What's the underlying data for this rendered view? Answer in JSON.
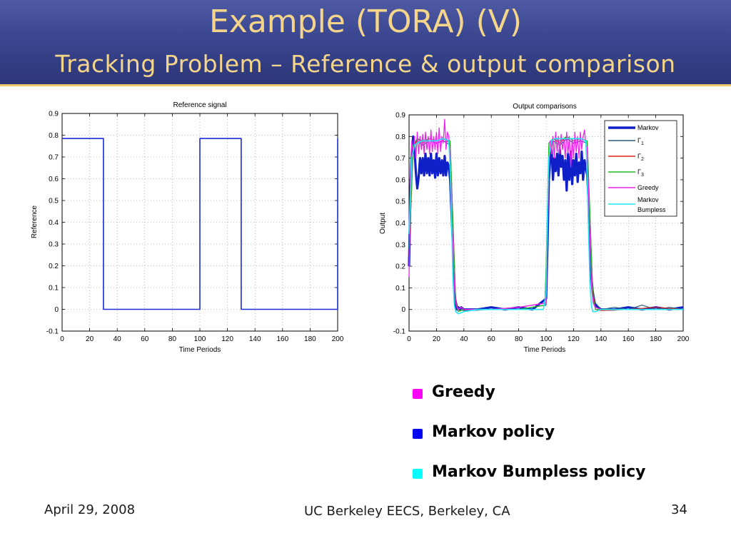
{
  "slide": {
    "title": "Example (TORA) (V)",
    "subtitle": "Tracking Problem – Reference & output comparison"
  },
  "chart_data": [
    {
      "type": "line",
      "title": "Reference signal",
      "xlabel": "Time Periods",
      "ylabel": "Reference",
      "xlim": [
        0,
        200
      ],
      "ylim": [
        -0.1,
        0.9
      ],
      "xticks": [
        0,
        20,
        40,
        60,
        80,
        100,
        120,
        140,
        160,
        180,
        200
      ],
      "yticks": [
        -0.1,
        0,
        0.1,
        0.2,
        0.3,
        0.4,
        0.5,
        0.6,
        0.7,
        0.8,
        0.9
      ],
      "grid": true,
      "series": [
        {
          "color": "#1a2bd6",
          "x": [
            0,
            30,
            30,
            100,
            100,
            130,
            130,
            200,
            200
          ],
          "y": [
            0.785,
            0.785,
            0,
            0,
            0.785,
            0.785,
            0,
            0,
            0.785
          ]
        }
      ]
    },
    {
      "type": "line",
      "title": "Output comparisons",
      "xlabel": "Time Periods",
      "ylabel": "Output",
      "xlim": [
        0,
        200
      ],
      "ylim": [
        -0.1,
        0.9
      ],
      "xticks": [
        0,
        20,
        40,
        60,
        80,
        100,
        120,
        140,
        160,
        180,
        200
      ],
      "yticks": [
        -0.1,
        0,
        0.1,
        0.2,
        0.3,
        0.4,
        0.5,
        0.6,
        0.7,
        0.8,
        0.9
      ],
      "grid": true,
      "legend_position": "top-right",
      "series": [
        {
          "name": "Markov",
          "color": "#1020c8",
          "x": [
            0,
            1,
            2,
            3,
            4,
            5,
            6,
            7,
            8,
            9,
            10,
            11,
            12,
            13,
            14,
            15,
            16,
            17,
            18,
            19,
            20,
            21,
            22,
            23,
            24,
            25,
            26,
            27,
            28,
            29,
            30,
            31,
            32,
            33,
            34,
            35,
            36,
            37,
            38,
            40,
            50,
            60,
            70,
            80,
            90,
            100,
            101,
            102,
            103,
            104,
            105,
            106,
            107,
            108,
            109,
            110,
            111,
            112,
            113,
            114,
            115,
            116,
            117,
            118,
            119,
            120,
            121,
            122,
            123,
            124,
            125,
            126,
            127,
            128,
            129,
            130,
            131,
            132,
            133,
            134,
            135,
            136,
            138,
            140,
            150,
            160,
            170,
            180,
            190,
            200
          ],
          "y": [
            0.2,
            0.55,
            0.72,
            0.8,
            0.74,
            0.63,
            0.56,
            0.61,
            0.7,
            0.63,
            0.7,
            0.62,
            0.72,
            0.63,
            0.7,
            0.62,
            0.72,
            0.63,
            0.69,
            0.61,
            0.72,
            0.62,
            0.7,
            0.63,
            0.69,
            0.62,
            0.71,
            0.62,
            0.68,
            0.66,
            0.6,
            0.45,
            0.3,
            0.1,
            0.02,
            0.0,
            0.01,
            0.0,
            0.01,
            0.0,
            0.0,
            0.01,
            0.0,
            0.01,
            0.0,
            0.05,
            0.3,
            0.6,
            0.7,
            0.74,
            0.6,
            0.7,
            0.64,
            0.72,
            0.62,
            0.74,
            0.66,
            0.71,
            0.6,
            0.69,
            0.55,
            0.72,
            0.6,
            0.73,
            0.58,
            0.69,
            0.62,
            0.72,
            0.59,
            0.68,
            0.63,
            0.73,
            0.6,
            0.69,
            0.65,
            0.62,
            0.5,
            0.35,
            0.15,
            0.08,
            0.03,
            0.02,
            0.01,
            0.0,
            0.0,
            0.01,
            0.0,
            0.01,
            0.0,
            0.01
          ]
        },
        {
          "name": "Γ1",
          "color": "#2d5a7c",
          "x": [
            0,
            3,
            6,
            10,
            15,
            20,
            25,
            30,
            32,
            34,
            36,
            40,
            60,
            80,
            100,
            102,
            105,
            110,
            115,
            120,
            125,
            130,
            132,
            134,
            136,
            140,
            150,
            160,
            170,
            180,
            190,
            200
          ],
          "y": [
            0.3,
            0.75,
            0.78,
            0.76,
            0.78,
            0.77,
            0.78,
            0.76,
            0.4,
            0.05,
            0.0,
            -0.005,
            0.0,
            0.0,
            0.02,
            0.72,
            0.78,
            0.76,
            0.79,
            0.77,
            0.78,
            0.77,
            0.4,
            0.1,
            0.03,
            0.0,
            0.01,
            0.0,
            0.02,
            0.0,
            0.01,
            0.0
          ]
        },
        {
          "name": "Γ2",
          "color": "#e0221c",
          "x": [
            0,
            3,
            6,
            10,
            15,
            20,
            25,
            30,
            32,
            34,
            36,
            40,
            60,
            80,
            100,
            102,
            105,
            110,
            115,
            120,
            125,
            130,
            132,
            134,
            136,
            140,
            160,
            180,
            200
          ],
          "y": [
            0.25,
            0.74,
            0.79,
            0.77,
            0.79,
            0.78,
            0.79,
            0.77,
            0.42,
            0.04,
            -0.01,
            0.0,
            0.0,
            0.01,
            0.03,
            0.7,
            0.79,
            0.77,
            0.8,
            0.78,
            0.79,
            0.78,
            0.42,
            0.08,
            0.0,
            -0.005,
            0.0,
            0.01,
            0.0
          ]
        },
        {
          "name": "Γ3",
          "color": "#22bb22",
          "x": [
            0,
            3,
            6,
            10,
            15,
            20,
            25,
            30,
            32,
            34,
            36,
            40,
            60,
            80,
            99,
            100,
            102,
            105,
            110,
            115,
            120,
            125,
            130,
            132,
            134,
            136,
            140,
            160,
            180,
            200
          ],
          "y": [
            0.28,
            0.76,
            0.79,
            0.78,
            0.79,
            0.78,
            0.79,
            0.78,
            0.4,
            0.03,
            -0.01,
            0.0,
            0.0,
            0.0,
            0.02,
            0.2,
            0.77,
            0.79,
            0.78,
            0.8,
            0.78,
            0.79,
            0.78,
            0.45,
            0.06,
            0.0,
            0.0,
            0.0,
            0.0,
            0.0
          ]
        },
        {
          "name": "Greedy",
          "color": "#ee22ee",
          "x": [
            0,
            1,
            2,
            3,
            4,
            5,
            6,
            7,
            8,
            9,
            10,
            11,
            12,
            13,
            14,
            15,
            16,
            17,
            18,
            19,
            20,
            21,
            22,
            23,
            24,
            25,
            26,
            27,
            28,
            29,
            30,
            31,
            32,
            33,
            34,
            35,
            36,
            38,
            40,
            60,
            80,
            100,
            101,
            102,
            103,
            104,
            105,
            106,
            107,
            108,
            109,
            110,
            111,
            112,
            113,
            114,
            115,
            116,
            117,
            118,
            119,
            120,
            121,
            122,
            123,
            124,
            125,
            126,
            127,
            128,
            129,
            130,
            131,
            132,
            133,
            134,
            135,
            136,
            140,
            160,
            180,
            200
          ],
          "y": [
            0.15,
            0.6,
            0.78,
            0.72,
            0.8,
            0.7,
            0.82,
            0.72,
            0.8,
            0.74,
            0.81,
            0.72,
            0.82,
            0.74,
            0.8,
            0.72,
            0.83,
            0.73,
            0.8,
            0.74,
            0.82,
            0.72,
            0.84,
            0.73,
            0.8,
            0.77,
            0.88,
            0.74,
            0.82,
            0.8,
            0.7,
            0.5,
            0.3,
            0.12,
            0.03,
            0.01,
            0.0,
            0.01,
            0.0,
            0.0,
            0.01,
            0.03,
            0.35,
            0.65,
            0.78,
            0.72,
            0.8,
            0.7,
            0.82,
            0.73,
            0.8,
            0.72,
            0.81,
            0.74,
            0.79,
            0.7,
            0.82,
            0.72,
            0.8,
            0.66,
            0.79,
            0.7,
            0.82,
            0.73,
            0.8,
            0.7,
            0.82,
            0.74,
            0.8,
            0.83,
            0.76,
            0.75,
            0.55,
            0.33,
            0.12,
            0.05,
            0.02,
            0.01,
            0.0,
            0.0,
            0.0,
            0.0
          ]
        },
        {
          "name": "Markov Bumpless",
          "color": "#22e6f2",
          "x": [
            0,
            2,
            4,
            6,
            10,
            15,
            20,
            25,
            29,
            30,
            31,
            32,
            33,
            34,
            36,
            40,
            50,
            60,
            70,
            80,
            90,
            98,
            100,
            101,
            102,
            104,
            106,
            110,
            115,
            120,
            125,
            129,
            130,
            131,
            132,
            133,
            134,
            136,
            140,
            150,
            160,
            170,
            180,
            190,
            200
          ],
          "y": [
            0.35,
            0.7,
            0.76,
            0.77,
            0.78,
            0.78,
            0.78,
            0.79,
            0.78,
            0.65,
            0.42,
            0.15,
            0.02,
            -0.01,
            -0.02,
            -0.01,
            0.0,
            0.0,
            0.0,
            0.0,
            0.0,
            0.0,
            0.08,
            0.45,
            0.7,
            0.78,
            0.79,
            0.79,
            0.79,
            0.79,
            0.79,
            0.78,
            0.6,
            0.35,
            0.12,
            0.02,
            -0.01,
            -0.01,
            0.0,
            0.0,
            0.0,
            0.0,
            0.0,
            0.0,
            0.0
          ]
        }
      ]
    }
  ],
  "legend": {
    "markov": "Markov",
    "gamma_symbol": "Γ",
    "gamma_1_sub": "1",
    "gamma_2_sub": "2",
    "gamma_3_sub": "3",
    "greedy": "Greedy",
    "bumpless_line1": "Markov",
    "bumpless_line2": "Bumpless"
  },
  "bullets": [
    {
      "text": "Greedy",
      "color": "#ff00ff"
    },
    {
      "text": "Markov policy",
      "color": "#0000ff"
    },
    {
      "text": "Markov Bumpless policy",
      "color": "#00ffff"
    }
  ],
  "footer": {
    "date": "April 29, 2008",
    "venue": "UC Berkeley EECS, Berkeley, CA",
    "page": "34"
  }
}
